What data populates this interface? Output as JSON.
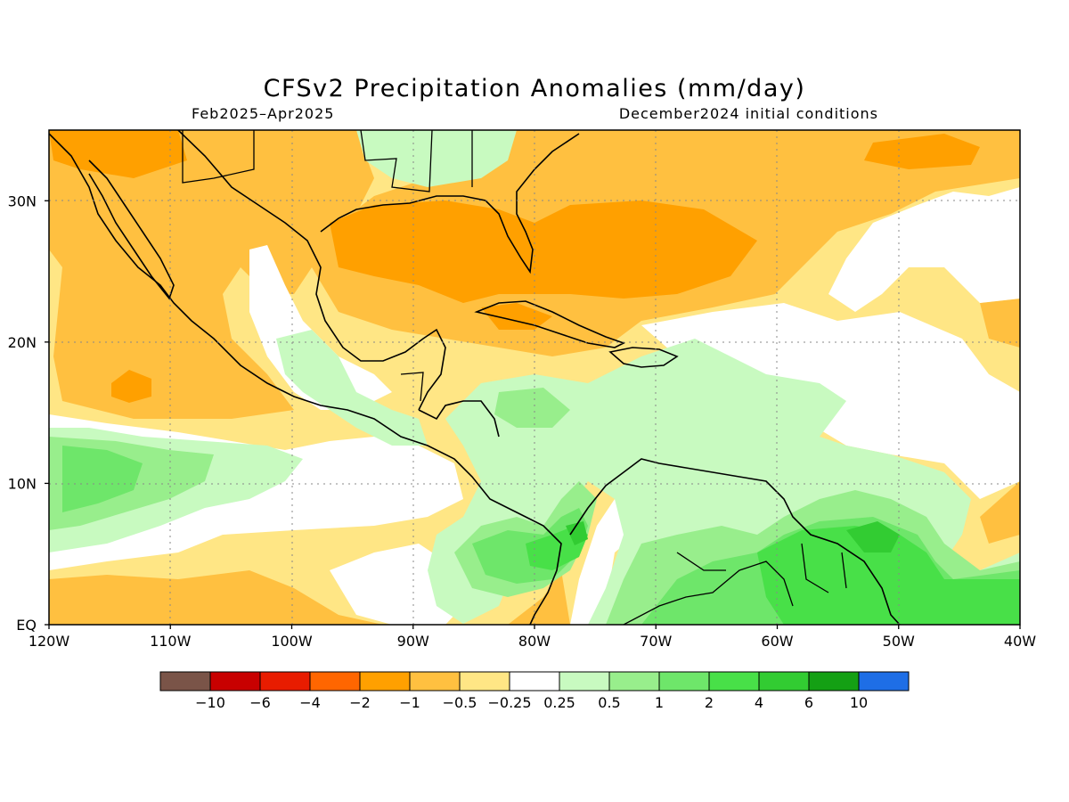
{
  "title": "CFSv2 Precipitation Anomalies (mm/day)",
  "subtitle_left": "Feb2025–Apr2025",
  "subtitle_right": "December2024 initial conditions",
  "axes": {
    "x_ticks": [
      "120W",
      "110W",
      "100W",
      "90W",
      "80W",
      "70W",
      "60W",
      "50W",
      "40W"
    ],
    "y_ticks": [
      "EQ",
      "10N",
      "20N",
      "30N"
    ],
    "lon_range": [
      -120,
      -40
    ],
    "lat_range": [
      0,
      35
    ],
    "grid": "dotted"
  },
  "legend": {
    "colors": [
      "#7a5448",
      "#c80000",
      "#e81c00",
      "#ff6600",
      "#ffa000",
      "#ffc040",
      "#ffe685",
      "#ffffff",
      "#c8fac0",
      "#98ee8c",
      "#6ee66a",
      "#48e048",
      "#32cc32",
      "#14a014",
      "#1e6ee6"
    ],
    "labels": [
      "−10",
      "−6",
      "−4",
      "−2",
      "−1",
      "−0.5",
      "−0.25",
      "0.25",
      "0.5",
      "1",
      "2",
      "4",
      "6",
      "10"
    ]
  },
  "map_colors": {
    "pale_yellow": "#ffe685",
    "light_orange": "#ffc040",
    "orange": "#ffa000",
    "pale_green": "#c8fac0",
    "light_green": "#98ee8c",
    "green": "#6ee66a",
    "bright_green": "#48e048",
    "mid_green": "#32cc32"
  }
}
